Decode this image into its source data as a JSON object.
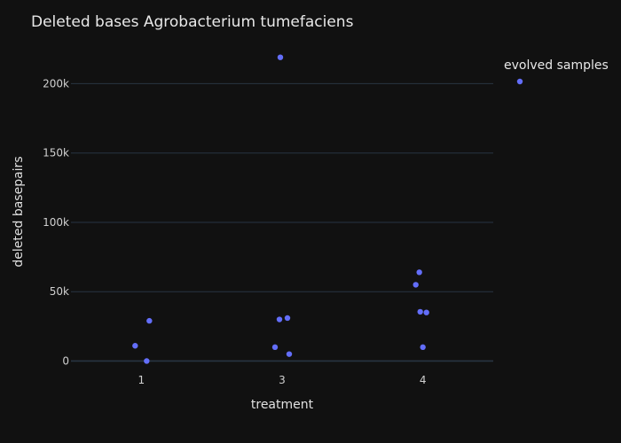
{
  "chart_data": {
    "type": "scatter",
    "title": "Deleted bases Agrobacterium tumefaciens",
    "xlabel": "treatment",
    "ylabel": "deleted basepairs",
    "categories": [
      "1",
      "3",
      "4"
    ],
    "ylim": [
      -8000,
      222000
    ],
    "y_ticks": [
      0,
      50000,
      100000,
      150000,
      200000
    ],
    "y_tick_labels": [
      "0",
      "50k",
      "100k",
      "150k",
      "200k"
    ],
    "grid": true,
    "legend_position": "top-right",
    "colors": {
      "background": "#111111",
      "grid": "#283442",
      "marker": "#636efa"
    },
    "series": [
      {
        "name": "evolved samples",
        "points": [
          {
            "x": "1",
            "y": 11000
          },
          {
            "x": "1",
            "y": 29000
          },
          {
            "x": "1",
            "y": 0
          },
          {
            "x": "3",
            "y": 219000
          },
          {
            "x": "3",
            "y": 31000
          },
          {
            "x": "3",
            "y": 30000
          },
          {
            "x": "3",
            "y": 10000
          },
          {
            "x": "3",
            "y": 5000
          },
          {
            "x": "4",
            "y": 64000
          },
          {
            "x": "4",
            "y": 55000
          },
          {
            "x": "4",
            "y": 35000
          },
          {
            "x": "4",
            "y": 35500
          },
          {
            "x": "4",
            "y": 10000
          }
        ]
      }
    ]
  }
}
